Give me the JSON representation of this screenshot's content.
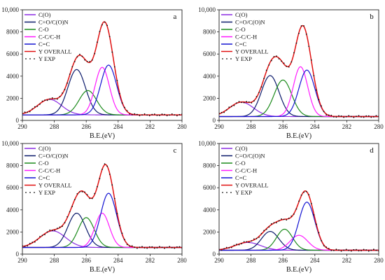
{
  "figure": {
    "colors": {
      "C(O)": "#8a2be2",
      "C=O/C(O)N": "#0b1a6b",
      "C-O": "#1a8a1a",
      "C-C/C-H": "#ff1aff",
      "C=C": "#1414d2",
      "Y OVERALL": "#e01010",
      "Y EXP": "#111111",
      "baseline": "#9999cc"
    }
  },
  "chart_data": [
    {
      "panel": "a",
      "type": "line",
      "xlabel": "B.E.(eV)",
      "ylabel": "",
      "xlim": [
        290,
        280
      ],
      "ylim": [
        0,
        10000
      ],
      "x_ticks": [
        "290",
        "288",
        "286",
        "284",
        "282",
        "280"
      ],
      "y_ticks": [
        "0",
        "2000",
        "4000",
        "6000",
        "8000",
        "10,000"
      ],
      "legend": [
        "C(O)",
        "C=O/C(O)N",
        "C-O",
        "C-C/C-H",
        "C=C",
        "Y OVERALL",
        "Y EXP"
      ],
      "legend_position": "top-left",
      "baseline": 500,
      "peaks": [
        {
          "name": "C(O)",
          "center": 288.3,
          "height": 1400,
          "sigma": 0.75
        },
        {
          "name": "C=O/C(O)N",
          "center": 286.6,
          "height": 4100,
          "sigma": 0.55
        },
        {
          "name": "C-O",
          "center": 285.9,
          "height": 2200,
          "sigma": 0.55
        },
        {
          "name": "C-C/C-H",
          "center": 285.0,
          "height": 4300,
          "sigma": 0.45
        },
        {
          "name": "C=C",
          "center": 284.6,
          "height": 4500,
          "sigma": 0.5
        }
      ]
    },
    {
      "panel": "b",
      "type": "line",
      "xlabel": "B.E.(eV)",
      "ylabel": "",
      "xlim": [
        290,
        280
      ],
      "ylim": [
        0,
        10000
      ],
      "x_ticks": [
        "290",
        "288",
        "286",
        "284",
        "282",
        "280"
      ],
      "y_ticks": [
        "0",
        "2000",
        "4000",
        "6000",
        "8000",
        "10,000"
      ],
      "legend": [
        "C(O)",
        "C=O/C(O)N",
        "C-O",
        "C-C/C-H",
        "C=C",
        "Y OVERALL",
        "Y EXP"
      ],
      "legend_position": "top-left",
      "baseline": 350,
      "peaks": [
        {
          "name": "C(O)",
          "center": 288.6,
          "height": 1300,
          "sigma": 0.75
        },
        {
          "name": "C=O/C(O)N",
          "center": 286.8,
          "height": 3700,
          "sigma": 0.55
        },
        {
          "name": "C-O",
          "center": 286.0,
          "height": 3300,
          "sigma": 0.55
        },
        {
          "name": "C-C/C-H",
          "center": 284.9,
          "height": 4500,
          "sigma": 0.45
        },
        {
          "name": "C=C",
          "center": 284.5,
          "height": 4200,
          "sigma": 0.5
        }
      ]
    },
    {
      "panel": "c",
      "type": "line",
      "xlabel": "B.E.(eV)",
      "ylabel": "",
      "xlim": [
        290,
        280
      ],
      "ylim": [
        0,
        10000
      ],
      "x_ticks": [
        "290",
        "288",
        "286",
        "284",
        "282",
        "280"
      ],
      "y_ticks": [
        "0",
        "2000",
        "4000",
        "6000",
        "8000",
        "10,000"
      ],
      "legend": [
        "C(O)",
        "C=O/C(O)N",
        "C-O",
        "C-C/C-H",
        "C=C",
        "Y OVERALL",
        "Y EXP"
      ],
      "legend_position": "top-left",
      "baseline": 600,
      "peaks": [
        {
          "name": "C(O)",
          "center": 288.1,
          "height": 1500,
          "sigma": 0.8
        },
        {
          "name": "C=O/C(O)N",
          "center": 286.6,
          "height": 3100,
          "sigma": 0.55
        },
        {
          "name": "C-O",
          "center": 286.0,
          "height": 2700,
          "sigma": 0.5
        },
        {
          "name": "C-C/C-H",
          "center": 285.0,
          "height": 3100,
          "sigma": 0.45
        },
        {
          "name": "C=C",
          "center": 284.6,
          "height": 4900,
          "sigma": 0.5
        }
      ]
    },
    {
      "panel": "d",
      "type": "line",
      "xlabel": "B.E.(eV)",
      "ylabel": "",
      "xlim": [
        290,
        280
      ],
      "ylim": [
        0,
        10000
      ],
      "x_ticks": [
        "290",
        "288",
        "286",
        "284",
        "282",
        "280"
      ],
      "y_ticks": [
        "0",
        "2000",
        "4000",
        "6000",
        "8000",
        "10,000"
      ],
      "legend": [
        "C(O)",
        "C=O/C(O)N",
        "C-O",
        "C-C/C-H",
        "C=C",
        "Y OVERALL",
        "Y EXP"
      ],
      "legend_position": "top-left",
      "baseline": 350,
      "peaks": [
        {
          "name": "C(O)",
          "center": 288.2,
          "height": 700,
          "sigma": 0.8
        },
        {
          "name": "C=O/C(O)N",
          "center": 286.8,
          "height": 1700,
          "sigma": 0.55
        },
        {
          "name": "C-O",
          "center": 285.9,
          "height": 1900,
          "sigma": 0.5
        },
        {
          "name": "C-C/C-H",
          "center": 285.0,
          "height": 1350,
          "sigma": 0.55
        },
        {
          "name": "C=C",
          "center": 284.5,
          "height": 4350,
          "sigma": 0.5
        }
      ]
    }
  ]
}
